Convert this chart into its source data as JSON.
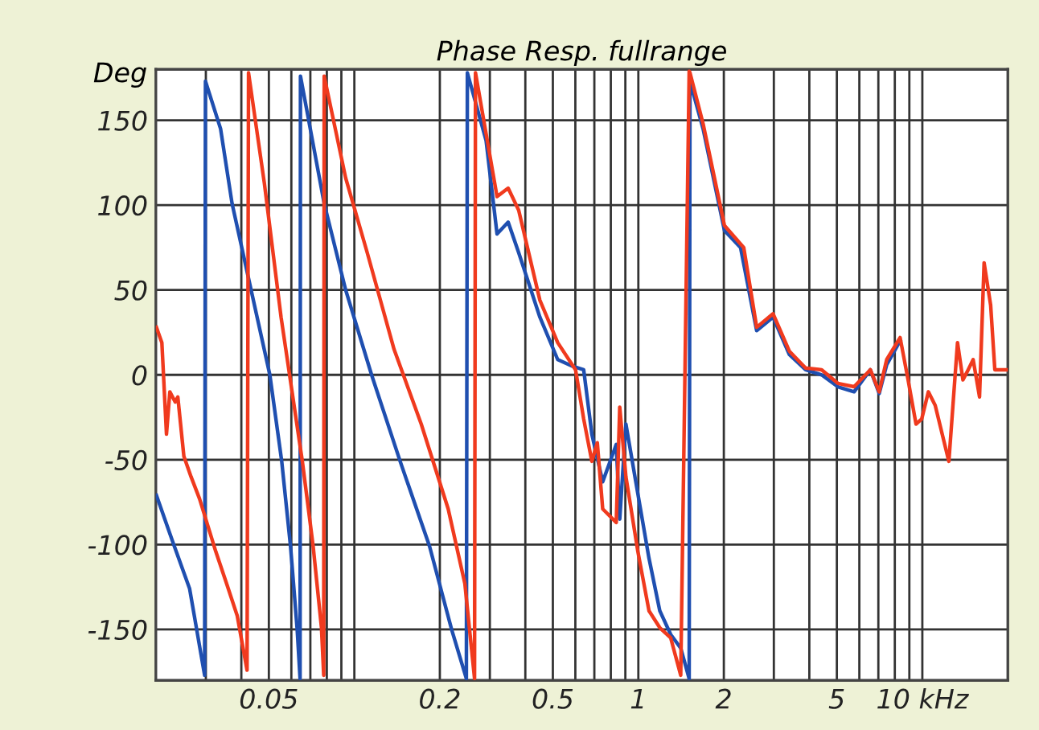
{
  "chart_data": {
    "type": "line",
    "title": "Phase Resp. fullrange",
    "ylabel": "Deg",
    "log": "x",
    "grid": true,
    "marker": "none",
    "line_style": "solid",
    "xlim": [
      0.02,
      20
    ],
    "ylim": [
      -180,
      180
    ],
    "xticks": [
      {
        "value": 0.03,
        "label": null
      },
      {
        "value": 0.04,
        "label": null
      },
      0.05,
      {
        "value": 0.06,
        "label": null
      },
      {
        "value": 0.07,
        "label": null
      },
      {
        "value": 0.08,
        "label": null
      },
      {
        "value": 0.09,
        "label": null
      },
      {
        "value": 0.1,
        "label": null
      },
      0.2,
      {
        "value": 0.3,
        "label": null
      },
      {
        "value": 0.4,
        "label": null
      },
      0.5,
      {
        "value": 0.6,
        "label": null
      },
      {
        "value": 0.7,
        "label": null
      },
      {
        "value": 0.8,
        "label": null
      },
      {
        "value": 0.9,
        "label": null
      },
      1,
      2,
      {
        "value": 3,
        "label": null
      },
      {
        "value": 4,
        "label": null
      },
      5,
      {
        "value": 6,
        "label": null
      },
      {
        "value": 7,
        "label": null
      },
      {
        "value": 8,
        "label": null
      },
      {
        "value": 9,
        "label": null
      },
      {
        "value": 10,
        "label": "10 kHz"
      }
    ],
    "yticks": [
      -150,
      -100,
      -50,
      0,
      50,
      100,
      150
    ],
    "series": [
      {
        "color": "#1f4fb0",
        "x": [
          0.0201,
          0.0229,
          0.0263,
          0.0297,
          0.0299,
          0.0338,
          0.0371,
          0.0433,
          0.0504,
          0.0555,
          0.0596,
          0.0629,
          0.0644,
          0.0646,
          0.0783,
          0.0932,
          0.115,
          0.145,
          0.184,
          0.22,
          0.248,
          0.25,
          0.291,
          0.318,
          0.348,
          0.379,
          0.45,
          0.52,
          0.588,
          0.642,
          0.686,
          0.749,
          0.836,
          0.86,
          0.904,
          0.996,
          1.09,
          1.19,
          1.3,
          1.41,
          1.51,
          1.52,
          1.69,
          2.01,
          2.29,
          2.61,
          2.98,
          3.4,
          3.88,
          4.42,
          5.04,
          5.75,
          6.56,
          7.05,
          7.49,
          8.35
        ],
        "values": [
          -71,
          -98,
          -126,
          -177,
          173,
          145,
          101,
          50,
          0,
          -51,
          -101,
          -150,
          -179,
          176,
          101,
          50,
          0,
          -51,
          -101,
          -150,
          -179,
          178,
          138,
          83,
          90,
          72,
          34,
          9,
          5,
          3,
          -35,
          -63,
          -41,
          -85,
          -29,
          -70,
          -108,
          -139,
          -153,
          -161,
          -179,
          173,
          145,
          85,
          75,
          26,
          34,
          12,
          3,
          0,
          -7,
          -10,
          3,
          -11,
          6,
          20
        ]
      },
      {
        "color": "#f03a1e",
        "x": [
          0.0201,
          0.021,
          0.0218,
          0.0224,
          0.0234,
          0.0239,
          0.0251,
          0.0266,
          0.0285,
          0.0325,
          0.0355,
          0.0387,
          0.0419,
          0.0424,
          0.0482,
          0.0552,
          0.0656,
          0.0716,
          0.0766,
          0.078,
          0.0783,
          0.0932,
          0.111,
          0.138,
          0.172,
          0.214,
          0.245,
          0.265,
          0.267,
          0.291,
          0.318,
          0.348,
          0.379,
          0.45,
          0.52,
          0.601,
          0.642,
          0.686,
          0.717,
          0.749,
          0.836,
          0.86,
          0.904,
          0.996,
          1.09,
          1.19,
          1.3,
          1.41,
          1.51,
          1.52,
          1.69,
          2.01,
          2.35,
          2.61,
          2.98,
          3.4,
          3.88,
          4.42,
          5.04,
          5.75,
          6.56,
          7.05,
          7.49,
          8.35,
          8.91,
          9.5,
          9.95,
          10.5,
          11.1,
          12.4,
          13.3,
          13.9,
          14.5,
          15.1,
          15.9,
          16.5,
          17.4,
          18.0,
          18.7,
          19.9
        ],
        "values": [
          28,
          19,
          -35,
          -10,
          -16,
          -13,
          -48,
          -60,
          -73,
          -104,
          -123,
          -142,
          -174,
          178,
          113,
          34,
          -51,
          -101,
          -149,
          -177,
          176,
          116,
          72,
          15,
          -29,
          -79,
          -123,
          -179,
          178,
          142,
          105,
          110,
          97,
          44,
          19,
          3,
          -26,
          -51,
          -40,
          -79,
          -87,
          -19,
          -60,
          -104,
          -139,
          -149,
          -155,
          -177,
          179,
          178,
          148,
          88,
          75,
          28,
          36,
          14,
          4,
          3,
          -5,
          -7,
          3,
          -10,
          9,
          22,
          -3,
          -29,
          -26,
          -10,
          -18,
          -51,
          19,
          -3,
          3,
          9,
          -13,
          66,
          41,
          3,
          3,
          3
        ]
      }
    ]
  }
}
